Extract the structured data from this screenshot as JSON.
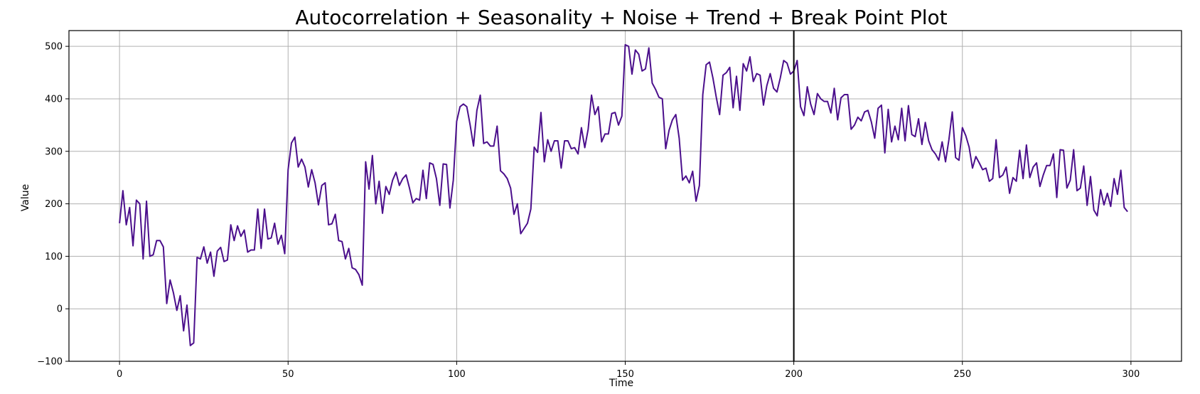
{
  "chart_data": {
    "type": "line",
    "title": "Autocorrelation + Seasonality + Noise + Trend + Break Point Plot",
    "xlabel": "Time",
    "ylabel": "Value",
    "xlim": [
      -15,
      315
    ],
    "ylim": [
      -100,
      530
    ],
    "xticks": [
      0,
      50,
      100,
      150,
      200,
      250,
      300
    ],
    "yticks": [
      -100,
      0,
      100,
      200,
      300,
      400,
      500
    ],
    "xtick_labels": [
      "0",
      "50",
      "100",
      "150",
      "200",
      "250",
      "300"
    ],
    "ytick_labels": [
      "−100",
      "0",
      "100",
      "200",
      "300",
      "400",
      "500"
    ],
    "grid": true,
    "series": [
      {
        "color": "#4b0f8c",
        "x_start": 0,
        "x_step": 1,
        "values": [
          163,
          225,
          160,
          193,
          120,
          207,
          200,
          95,
          205,
          100,
          103,
          130,
          130,
          118,
          10,
          55,
          30,
          -3,
          25,
          -42,
          7,
          -70,
          -65,
          98,
          95,
          118,
          87,
          108,
          62,
          110,
          117,
          90,
          93,
          160,
          130,
          158,
          138,
          150,
          108,
          112,
          112,
          190,
          115,
          190,
          133,
          135,
          163,
          123,
          140,
          105,
          265,
          316,
          327,
          270,
          285,
          270,
          232,
          265,
          240,
          198,
          235,
          240,
          160,
          162,
          180,
          130,
          128,
          95,
          115,
          78,
          75,
          65,
          45,
          280,
          228,
          292,
          200,
          243,
          182,
          233,
          218,
          245,
          260,
          235,
          248,
          255,
          230,
          202,
          210,
          207,
          264,
          210,
          278,
          275,
          248,
          197,
          276,
          275,
          192,
          245,
          357,
          385,
          390,
          385,
          350,
          310,
          378,
          407,
          315,
          318,
          310,
          310,
          348,
          263,
          257,
          248,
          230,
          180,
          200,
          143,
          153,
          163,
          190,
          308,
          298,
          374,
          280,
          322,
          300,
          320,
          320,
          268,
          320,
          320,
          305,
          307,
          295,
          345,
          307,
          342,
          407,
          370,
          385,
          318,
          333,
          333,
          372,
          374,
          350,
          367,
          503,
          500,
          447,
          493,
          485,
          453,
          457,
          497,
          430,
          418,
          403,
          400,
          305,
          340,
          360,
          370,
          325,
          245,
          253,
          240,
          262,
          205,
          235,
          408,
          465,
          470,
          440,
          403,
          370,
          445,
          450,
          460,
          383,
          443,
          378,
          467,
          453,
          480,
          433,
          448,
          445,
          388,
          425,
          448,
          420,
          413,
          440,
          473,
          468,
          447,
          453,
          473,
          385,
          368,
          423,
          390,
          370,
          410,
          400,
          395,
          395,
          373,
          420,
          360,
          402,
          408,
          408,
          342,
          350,
          365,
          358,
          375,
          378,
          356,
          325,
          382,
          388,
          297,
          380,
          318,
          348,
          322,
          382,
          320,
          387,
          332,
          328,
          362,
          313,
          355,
          320,
          303,
          295,
          283,
          318,
          280,
          322,
          375,
          288,
          283,
          345,
          330,
          308,
          268,
          290,
          278,
          265,
          268,
          243,
          248,
          322,
          250,
          255,
          270,
          220,
          250,
          243,
          302,
          248,
          312,
          250,
          270,
          278,
          233,
          255,
          273,
          273,
          295,
          212,
          303,
          302,
          230,
          245,
          303,
          225,
          230,
          272,
          197,
          252,
          188,
          177,
          227,
          198,
          220,
          195,
          248,
          218,
          264,
          193,
          185
        ]
      }
    ],
    "vline": {
      "x": 200,
      "color": "#000000"
    }
  }
}
